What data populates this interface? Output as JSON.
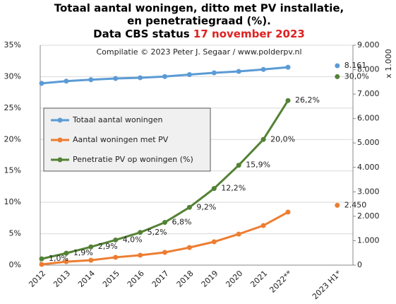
{
  "chart_data": {
    "type": "line",
    "title_lines": [
      "Totaal aantal woningen, ditto met PV installatie,",
      "en penetratiegraad (%)."
    ],
    "title_status": "Data CBS  status",
    "title_date": "17 november 2023",
    "subtitle": "Compilatie  © 2023 Peter J. Segaar / www.polderpv.nl",
    "y2_label": "x 1.000",
    "categories": [
      "2012",
      "2013",
      "2014",
      "2015",
      "2016",
      "2017",
      "2018",
      "2019",
      "2020",
      "2021",
      "2022**",
      null,
      "2023 H1*"
    ],
    "series": [
      {
        "name": "Totaal aantal woningen",
        "color": "#5b9bd5",
        "axis": "y2",
        "values": [
          7440,
          7530,
          7590,
          7640,
          7670,
          7720,
          7800,
          7870,
          7930,
          8010,
          8100,
          null,
          8161
        ],
        "value_labels": [
          null,
          null,
          null,
          null,
          null,
          null,
          null,
          null,
          null,
          null,
          null,
          null,
          "8.161"
        ],
        "label_color": "#5b9bd5"
      },
      {
        "name": "Aantal woningen met PV",
        "color": "#ed7d31",
        "axis": "y2",
        "values": [
          30,
          140,
          200,
          320,
          405,
          520,
          720,
          955,
          1270,
          1620,
          2170,
          null,
          2450
        ],
        "value_labels": [
          null,
          null,
          null,
          null,
          null,
          null,
          null,
          null,
          null,
          null,
          null,
          null,
          "2.450"
        ],
        "label_color": "#ed7d31"
      },
      {
        "name": "Penetratie PV op woningen (%)",
        "color": "#548235",
        "axis": "y",
        "values": [
          1.0,
          1.9,
          2.9,
          4.0,
          5.2,
          6.8,
          9.2,
          12.2,
          15.9,
          20.0,
          26.2,
          null,
          30.0
        ],
        "value_labels": [
          "1,0%",
          "1,9%",
          "2,9%",
          "4,0%",
          "5,2%",
          "6,8%",
          "9,2%",
          "12,2%",
          "15,9%",
          "20,0%",
          "26,2%",
          null,
          "30,0%"
        ],
        "label_color": "#4e7a2e"
      }
    ],
    "ylim": [
      0,
      35
    ],
    "yticks": [
      {
        "value": 0,
        "label": "0%"
      },
      {
        "value": 5,
        "label": "5%"
      },
      {
        "value": 10,
        "label": "10%"
      },
      {
        "value": 15,
        "label": "15%"
      },
      {
        "value": 20,
        "label": "20%"
      },
      {
        "value": 25,
        "label": "25%"
      },
      {
        "value": 30,
        "label": "30%"
      },
      {
        "value": 35,
        "label": "35%"
      }
    ],
    "y2lim": [
      0,
      9000
    ],
    "y2ticks": [
      0,
      {
        "value": 1000,
        "label": "1.000"
      },
      {
        "value": 2000,
        "label": "2.000"
      },
      {
        "value": 3000,
        "label": "3.000"
      },
      {
        "value": 4000,
        "label": "4.000"
      },
      {
        "value": 5000,
        "label": "5.000"
      },
      {
        "value": 6000,
        "label": "6.000"
      },
      {
        "value": 7000,
        "label": "7.000"
      },
      {
        "value": 8000,
        "label": "8.000"
      },
      {
        "value": 9000,
        "label": "9.000"
      }
    ],
    "grid": true
  }
}
